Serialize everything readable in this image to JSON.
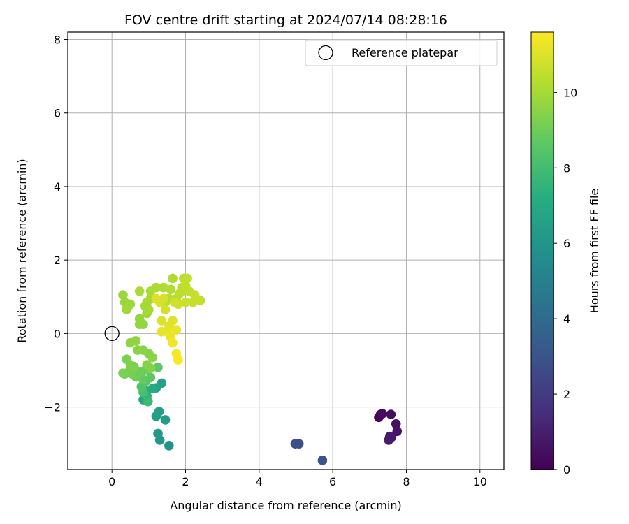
{
  "chart_data": {
    "type": "scatter",
    "title": "FOV centre drift starting at 2024/07/14 08:28:16",
    "xlabel": "Angular distance from reference (arcmin)",
    "ylabel": "Rotation from reference (arcmin)",
    "xlim": [
      -1.2,
      10.65
    ],
    "ylim": [
      -3.7,
      8.2
    ],
    "xticks": [
      0,
      2,
      4,
      6,
      8,
      10
    ],
    "yticks": [
      -2,
      0,
      2,
      4,
      6,
      8
    ],
    "xtick_labels": [
      "0",
      "2",
      "4",
      "6",
      "8",
      "10"
    ],
    "ytick_labels": [
      "−2",
      "0",
      "2",
      "4",
      "6",
      "8"
    ],
    "grid": true,
    "legend": {
      "position": "top-right",
      "entries": [
        "Reference platepar"
      ]
    },
    "reference_point": {
      "x": 0,
      "y": 0
    },
    "colorbar": {
      "label": "Hours from first FF file",
      "colormap": "viridis",
      "range": [
        0,
        11.6
      ],
      "ticks": [
        0,
        2,
        4,
        6,
        8,
        10
      ],
      "tick_labels": [
        "0",
        "2",
        "4",
        "6",
        "8",
        "10"
      ]
    },
    "points": [
      {
        "x": 7.3,
        "y": -2.2,
        "c": 0.1
      },
      {
        "x": 7.25,
        "y": -2.28,
        "c": 0.2
      },
      {
        "x": 7.35,
        "y": -2.18,
        "c": 0.3
      },
      {
        "x": 7.58,
        "y": -2.2,
        "c": 0.4
      },
      {
        "x": 7.72,
        "y": -2.46,
        "c": 0.5
      },
      {
        "x": 7.75,
        "y": -2.66,
        "c": 0.6
      },
      {
        "x": 7.55,
        "y": -2.8,
        "c": 0.7
      },
      {
        "x": 7.6,
        "y": -2.82,
        "c": 0.8
      },
      {
        "x": 7.52,
        "y": -2.9,
        "c": 0.9
      },
      {
        "x": 4.98,
        "y": -3.0,
        "c": 2.7
      },
      {
        "x": 5.08,
        "y": -3.0,
        "c": 2.8
      },
      {
        "x": 5.72,
        "y": -3.45,
        "c": 3.0
      },
      {
        "x": 1.55,
        "y": -3.05,
        "c": 6.0
      },
      {
        "x": 1.3,
        "y": -2.9,
        "c": 6.1
      },
      {
        "x": 1.25,
        "y": -2.72,
        "c": 6.2
      },
      {
        "x": 1.45,
        "y": -2.35,
        "c": 6.3
      },
      {
        "x": 1.2,
        "y": -2.25,
        "c": 6.4
      },
      {
        "x": 1.28,
        "y": -2.12,
        "c": 6.5
      },
      {
        "x": 1.35,
        "y": -1.35,
        "c": 6.6
      },
      {
        "x": 0.85,
        "y": -1.8,
        "c": 6.7
      },
      {
        "x": 1.2,
        "y": -1.48,
        "c": 6.8
      },
      {
        "x": 1.1,
        "y": -1.5,
        "c": 7.0
      },
      {
        "x": 0.9,
        "y": -1.55,
        "c": 7.2
      },
      {
        "x": 0.95,
        "y": -1.7,
        "c": 7.5
      },
      {
        "x": 0.98,
        "y": -1.85,
        "c": 7.8
      },
      {
        "x": 0.85,
        "y": -1.6,
        "c": 8.1
      },
      {
        "x": 0.8,
        "y": -1.45,
        "c": 8.3
      },
      {
        "x": 0.92,
        "y": -1.3,
        "c": 8.5
      },
      {
        "x": 1.05,
        "y": -1.2,
        "c": 8.6
      },
      {
        "x": 1.25,
        "y": -0.92,
        "c": 8.7
      },
      {
        "x": 0.85,
        "y": -1.25,
        "c": 8.8
      },
      {
        "x": 0.9,
        "y": -1.0,
        "c": 8.9
      },
      {
        "x": 0.75,
        "y": -1.05,
        "c": 9.0
      },
      {
        "x": 0.65,
        "y": -1.18,
        "c": 9.0
      },
      {
        "x": 0.55,
        "y": -1.1,
        "c": 9.1
      },
      {
        "x": 0.45,
        "y": -1.05,
        "c": 9.1
      },
      {
        "x": 0.35,
        "y": -1.1,
        "c": 9.2
      },
      {
        "x": 0.3,
        "y": -1.08,
        "c": 9.2
      },
      {
        "x": 0.4,
        "y": -0.7,
        "c": 9.2
      },
      {
        "x": 0.5,
        "y": -0.85,
        "c": 9.3
      },
      {
        "x": 0.6,
        "y": -0.9,
        "c": 9.3
      },
      {
        "x": 0.95,
        "y": -0.85,
        "c": 9.4
      },
      {
        "x": 1.05,
        "y": -0.95,
        "c": 9.4
      },
      {
        "x": 1.0,
        "y": -0.55,
        "c": 9.4
      },
      {
        "x": 1.1,
        "y": -0.65,
        "c": 9.5
      },
      {
        "x": 0.85,
        "y": -0.45,
        "c": 9.5
      },
      {
        "x": 0.7,
        "y": -0.45,
        "c": 9.5
      },
      {
        "x": 0.5,
        "y": -0.25,
        "c": 9.6
      },
      {
        "x": 0.65,
        "y": -0.2,
        "c": 9.6
      },
      {
        "x": 0.75,
        "y": 0.25,
        "c": 9.6
      },
      {
        "x": 0.85,
        "y": 0.25,
        "c": 9.7
      },
      {
        "x": 0.75,
        "y": 0.4,
        "c": 9.7
      },
      {
        "x": 0.3,
        "y": 1.05,
        "c": 9.8
      },
      {
        "x": 0.35,
        "y": 0.85,
        "c": 9.8
      },
      {
        "x": 0.45,
        "y": 0.75,
        "c": 9.8
      },
      {
        "x": 0.4,
        "y": 0.65,
        "c": 9.9
      },
      {
        "x": 0.5,
        "y": 0.8,
        "c": 9.9
      },
      {
        "x": 0.95,
        "y": 0.55,
        "c": 9.9
      },
      {
        "x": 1.0,
        "y": 0.65,
        "c": 10.0
      },
      {
        "x": 0.9,
        "y": 0.75,
        "c": 10.0
      },
      {
        "x": 0.95,
        "y": 0.85,
        "c": 10.0
      },
      {
        "x": 1.05,
        "y": 0.95,
        "c": 10.0
      },
      {
        "x": 0.75,
        "y": 1.15,
        "c": 10.1
      },
      {
        "x": 1.05,
        "y": 1.15,
        "c": 10.1
      },
      {
        "x": 1.2,
        "y": 1.25,
        "c": 10.1
      },
      {
        "x": 1.4,
        "y": 1.25,
        "c": 10.2
      },
      {
        "x": 1.65,
        "y": 1.5,
        "c": 10.2
      },
      {
        "x": 1.6,
        "y": 1.2,
        "c": 10.2
      },
      {
        "x": 1.55,
        "y": 0.95,
        "c": 10.3
      },
      {
        "x": 1.45,
        "y": 0.85,
        "c": 10.3
      },
      {
        "x": 1.75,
        "y": 0.95,
        "c": 10.3
      },
      {
        "x": 1.85,
        "y": 1.1,
        "c": 10.4
      },
      {
        "x": 1.9,
        "y": 1.25,
        "c": 10.4
      },
      {
        "x": 1.95,
        "y": 1.5,
        "c": 10.4
      },
      {
        "x": 2.05,
        "y": 1.5,
        "c": 10.5
      },
      {
        "x": 2.0,
        "y": 1.3,
        "c": 10.5
      },
      {
        "x": 2.1,
        "y": 1.15,
        "c": 10.5
      },
      {
        "x": 2.25,
        "y": 1.05,
        "c": 10.6
      },
      {
        "x": 2.4,
        "y": 0.9,
        "c": 10.6
      },
      {
        "x": 2.2,
        "y": 0.85,
        "c": 10.6
      },
      {
        "x": 2.0,
        "y": 0.85,
        "c": 10.7
      },
      {
        "x": 1.8,
        "y": 0.8,
        "c": 10.7
      },
      {
        "x": 1.7,
        "y": 0.85,
        "c": 10.8
      },
      {
        "x": 1.45,
        "y": 0.65,
        "c": 10.8
      },
      {
        "x": 1.4,
        "y": 0.95,
        "c": 10.9
      },
      {
        "x": 1.3,
        "y": 0.85,
        "c": 10.9
      },
      {
        "x": 1.2,
        "y": 0.95,
        "c": 11.0
      },
      {
        "x": 1.35,
        "y": 0.35,
        "c": 11.0
      },
      {
        "x": 1.55,
        "y": 0.2,
        "c": 11.1
      },
      {
        "x": 1.65,
        "y": 0.35,
        "c": 11.1
      },
      {
        "x": 1.35,
        "y": 0.05,
        "c": 11.2
      },
      {
        "x": 1.5,
        "y": 0.05,
        "c": 11.2
      },
      {
        "x": 1.75,
        "y": 0.1,
        "c": 11.3
      },
      {
        "x": 1.6,
        "y": -0.1,
        "c": 11.3
      },
      {
        "x": 1.65,
        "y": -0.25,
        "c": 11.4
      },
      {
        "x": 1.75,
        "y": -0.55,
        "c": 11.5
      },
      {
        "x": 1.8,
        "y": -0.72,
        "c": 11.6
      }
    ]
  }
}
